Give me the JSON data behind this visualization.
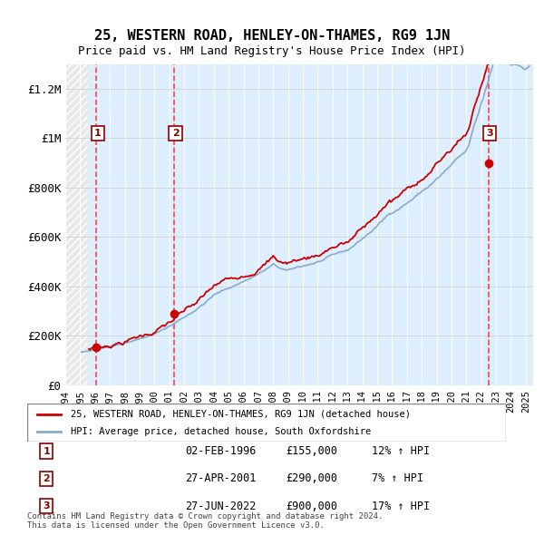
{
  "title": "25, WESTERN ROAD, HENLEY-ON-THAMES, RG9 1JN",
  "subtitle": "Price paid vs. HM Land Registry's House Price Index (HPI)",
  "ylabel": "",
  "xlim_start": 1994.0,
  "xlim_end": 2025.5,
  "ylim": [
    0,
    1300000
  ],
  "yticks": [
    0,
    200000,
    400000,
    600000,
    800000,
    1000000,
    1200000
  ],
  "ytick_labels": [
    "£0",
    "£200K",
    "£400K",
    "£600K",
    "£800K",
    "£1M",
    "£1.2M"
  ],
  "purchases": [
    {
      "year": 1996.085,
      "price": 155000,
      "label": "1"
    },
    {
      "year": 2001.32,
      "price": 290000,
      "label": "2"
    },
    {
      "year": 2022.49,
      "price": 900000,
      "label": "3"
    }
  ],
  "legend_line1": "25, WESTERN ROAD, HENLEY-ON-THAMES, RG9 1JN (detached house)",
  "legend_line2": "HPI: Average price, detached house, South Oxfordshire",
  "table_rows": [
    {
      "num": "1",
      "date": "02-FEB-1996",
      "price": "£155,000",
      "hpi": "12% ↑ HPI"
    },
    {
      "num": "2",
      "date": "27-APR-2001",
      "price": "£290,000",
      "hpi": "7% ↑ HPI"
    },
    {
      "num": "3",
      "date": "27-JUN-2022",
      "price": "£900,000",
      "hpi": "17% ↑ HPI"
    }
  ],
  "footnote": "Contains HM Land Registry data © Crown copyright and database right 2024.\nThis data is licensed under the Open Government Licence v3.0.",
  "bg_hatched_color": "#e8e8e8",
  "bg_plain_color": "#ddeeff",
  "line_color_red": "#cc0000",
  "line_color_blue": "#88aacc",
  "dashed_vline_color": "#ff4444",
  "purchase_dot_color": "#cc0000"
}
